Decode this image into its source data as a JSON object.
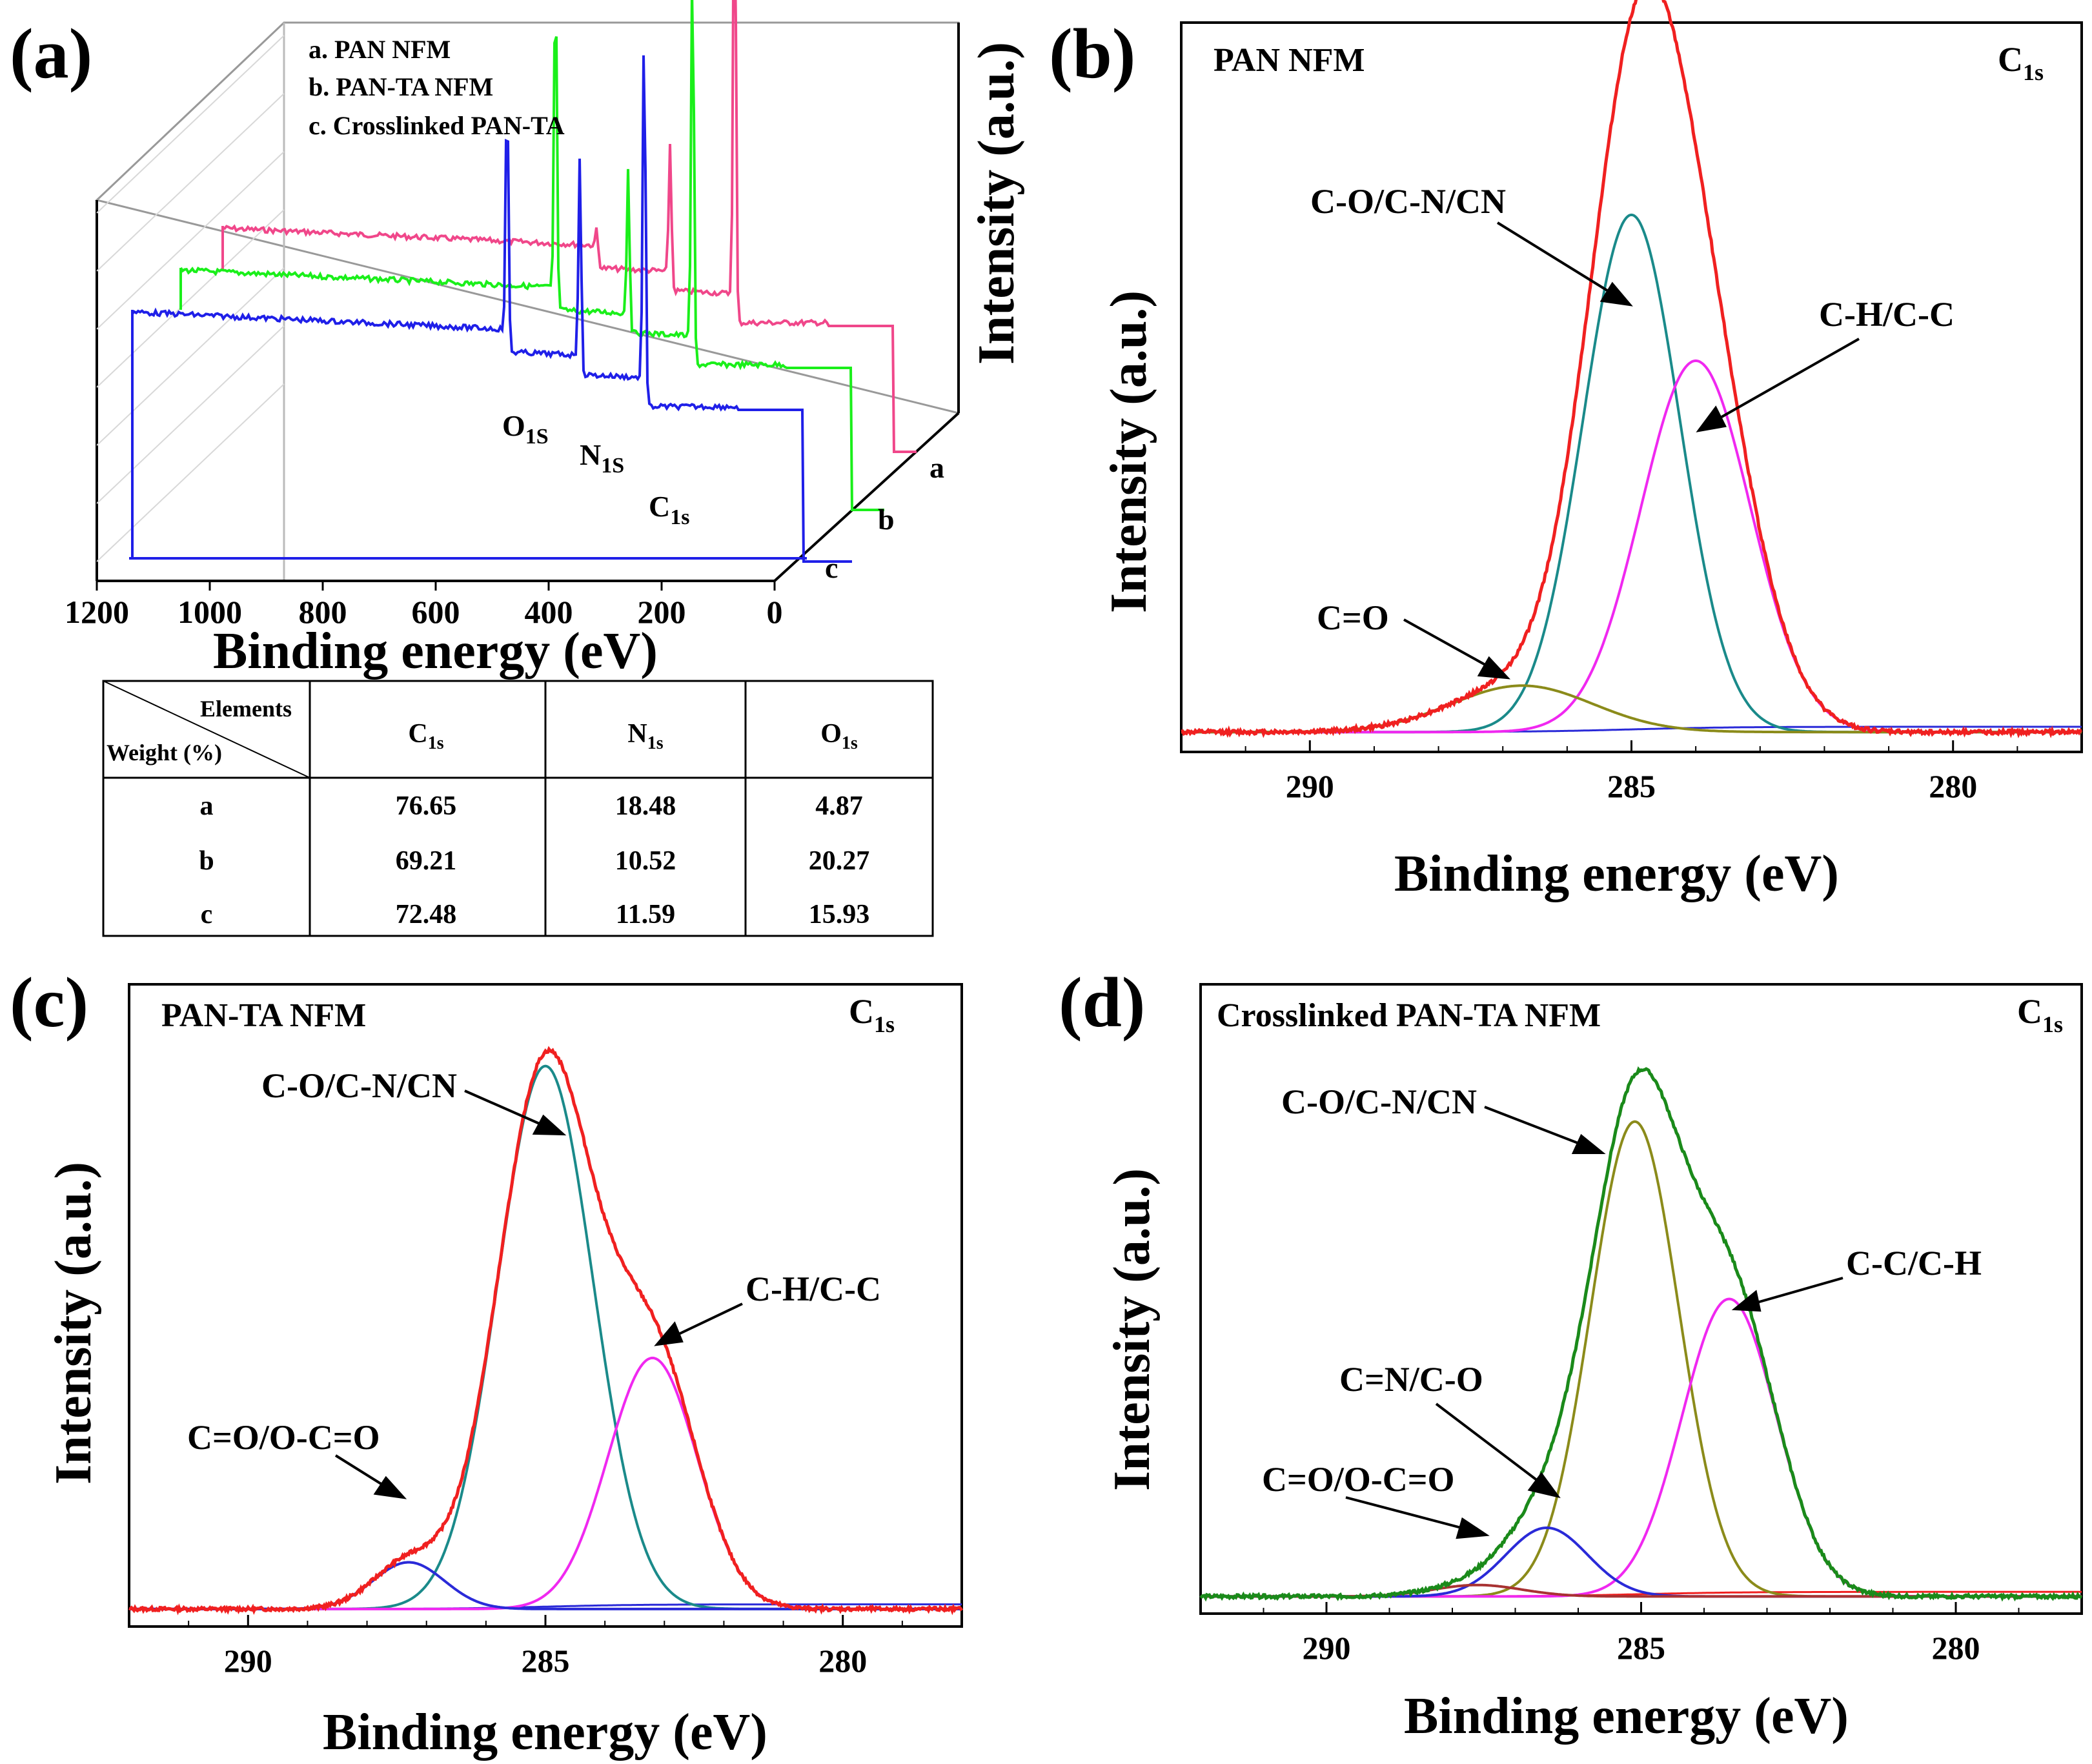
{
  "chart_data": [
    {
      "panel": "(a)",
      "type": "line",
      "title": "",
      "xlabel": "Binding energy (eV)",
      "ylabel": "Intensity (a.u.)",
      "xlim": [
        1200,
        0
      ],
      "x_ticks": [
        "1200",
        "1000",
        "800",
        "600",
        "400",
        "200",
        "0"
      ],
      "legend": [
        "a. PAN NFM",
        "b. PAN-TA NFM",
        "c. Crosslinked PAN-TA"
      ],
      "series_labels": [
        "a",
        "b",
        "c"
      ],
      "peak_labels": {
        "o1s": "O",
        "o1s_sub": "1S",
        "n1s": "N",
        "n1s_sub": "1S",
        "c1s": "C",
        "c1s_sub": "1s"
      },
      "series": [
        {
          "name": "a. PAN NFM",
          "color": "#f0478a",
          "peaks": [
            {
              "x": 530,
              "h": 0.05
            },
            {
              "x": 400,
              "h": 0.28
            },
            {
              "x": 285,
              "h": 1.0
            }
          ]
        },
        {
          "name": "b. PAN-TA NFM",
          "color": "#1aef1a",
          "peaks": [
            {
              "x": 530,
              "h": 0.85
            },
            {
              "x": 400,
              "h": 0.38
            },
            {
              "x": 285,
              "h": 1.0
            }
          ]
        },
        {
          "name": "c. Crosslinked PAN-TA",
          "color": "#1f1fe8",
          "peaks": [
            {
              "x": 530,
              "h": 0.7
            },
            {
              "x": 400,
              "h": 0.55
            },
            {
              "x": 285,
              "h": 1.0
            }
          ]
        }
      ],
      "table": {
        "corner_top": "Elements",
        "corner_bottom": "Weight (%)",
        "headers": [
          {
            "main": "C",
            "sub": "1s"
          },
          {
            "main": "N",
            "sub": "1s"
          },
          {
            "main": "O",
            "sub": "1s"
          }
        ],
        "rows": [
          {
            "label": "a",
            "c": "76.65",
            "n": "18.48",
            "o": "4.87"
          },
          {
            "label": "b",
            "c": "69.21",
            "n": "10.52",
            "o": "20.27"
          },
          {
            "label": "c",
            "c": "72.48",
            "n": "11.59",
            "o": "15.93"
          }
        ],
        "highlight_color": "#ff0000"
      }
    },
    {
      "panel": "(b)",
      "type": "line",
      "title": "PAN NFM",
      "core_level": {
        "main": "C",
        "sub": "1s"
      },
      "xlabel": "Binding energy (eV)",
      "ylabel": "Intensity (a.u.)",
      "xlim": [
        292,
        278
      ],
      "ylim": [
        0,
        1.1
      ],
      "x_ticks": [
        290,
        285,
        280
      ],
      "baseline": 0.03,
      "components": [
        {
          "name": "C-O/C-N/CN",
          "center": 285.0,
          "height": 0.78,
          "sigma": 0.75,
          "color": "#1a8a8a"
        },
        {
          "name": "C-H/C-C",
          "center": 284.0,
          "height": 0.56,
          "sigma": 0.85,
          "color": "#f028f0"
        },
        {
          "name": "C=O",
          "center": 286.7,
          "height": 0.07,
          "sigma": 1.1,
          "color": "#8b8b1a"
        }
      ],
      "envelope_color": "#f02020",
      "background_color": "#2a2ad8",
      "annotations": [
        {
          "text": "C-O/C-N/CN",
          "target": "C-O/C-N/CN"
        },
        {
          "text": "C-H/C-C",
          "target": "C-H/C-C"
        },
        {
          "text": "C=O",
          "target": "C=O"
        }
      ]
    },
    {
      "panel": "(c)",
      "type": "line",
      "title": "PAN-TA NFM",
      "core_level": {
        "main": "C",
        "sub": "1s"
      },
      "xlabel": "Binding energy (eV)",
      "ylabel": "Intensity (a.u.)",
      "xlim": [
        292,
        278
      ],
      "ylim": [
        0,
        1.1
      ],
      "x_ticks": [
        290,
        285,
        280
      ],
      "baseline": 0.03,
      "components": [
        {
          "name": "C-O/C-N/CN",
          "center": 285.0,
          "height": 0.93,
          "sigma": 0.8,
          "color": "#1a8a8a"
        },
        {
          "name": "C-H/C-C",
          "center": 283.2,
          "height": 0.43,
          "sigma": 0.75,
          "color": "#f028f0"
        },
        {
          "name": "C=O/O-C=O",
          "center": 287.3,
          "height": 0.08,
          "sigma": 0.6,
          "color": "#2a2ad8"
        }
      ],
      "envelope_color": "#f02020",
      "background_color": "#2a2ad8",
      "annotations": [
        {
          "text": "C-O/C-N/CN",
          "target": "C-O/C-N/CN"
        },
        {
          "text": "C-H/C-C",
          "target": "C-H/C-C"
        },
        {
          "text": "C=O/O-C=O",
          "target": "C=O/O-C=O"
        }
      ]
    },
    {
      "panel": "(d)",
      "type": "line",
      "title": "Crosslinked PAN-TA NFM",
      "core_level": {
        "main": "C",
        "sub": "1s"
      },
      "xlabel": "Binding energy (eV)",
      "ylabel": "Intensity (a.u.)",
      "xlim": [
        292,
        278
      ],
      "ylim": [
        0,
        1.1
      ],
      "x_ticks": [
        290,
        285,
        280
      ],
      "baseline": 0.03,
      "components": [
        {
          "name": "C-O/C-N/CN",
          "center": 285.1,
          "height": 0.83,
          "sigma": 0.7,
          "color": "#8b8b1a"
        },
        {
          "name": "C-C/C-H",
          "center": 283.6,
          "height": 0.52,
          "sigma": 0.75,
          "color": "#f028f0"
        },
        {
          "name": "C=N/C-O",
          "center": 286.5,
          "height": 0.12,
          "sigma": 0.65,
          "color": "#2a2ad8"
        },
        {
          "name": "C=O/O-C=O",
          "center": 287.6,
          "height": 0.02,
          "sigma": 0.7,
          "color": "#a83232"
        }
      ],
      "envelope_color": "#1a8a1a",
      "background_color": "#f02020",
      "annotations": [
        {
          "text": "C-O/C-N/CN",
          "target": "C-O/C-N/CN"
        },
        {
          "text": "C-C/C-H",
          "target": "C-C/C-H"
        },
        {
          "text": "C=N/C-O",
          "target": "C=N/C-O"
        },
        {
          "text": "C=O/O-C=O",
          "target": "C=O/O-C=O"
        }
      ]
    }
  ]
}
